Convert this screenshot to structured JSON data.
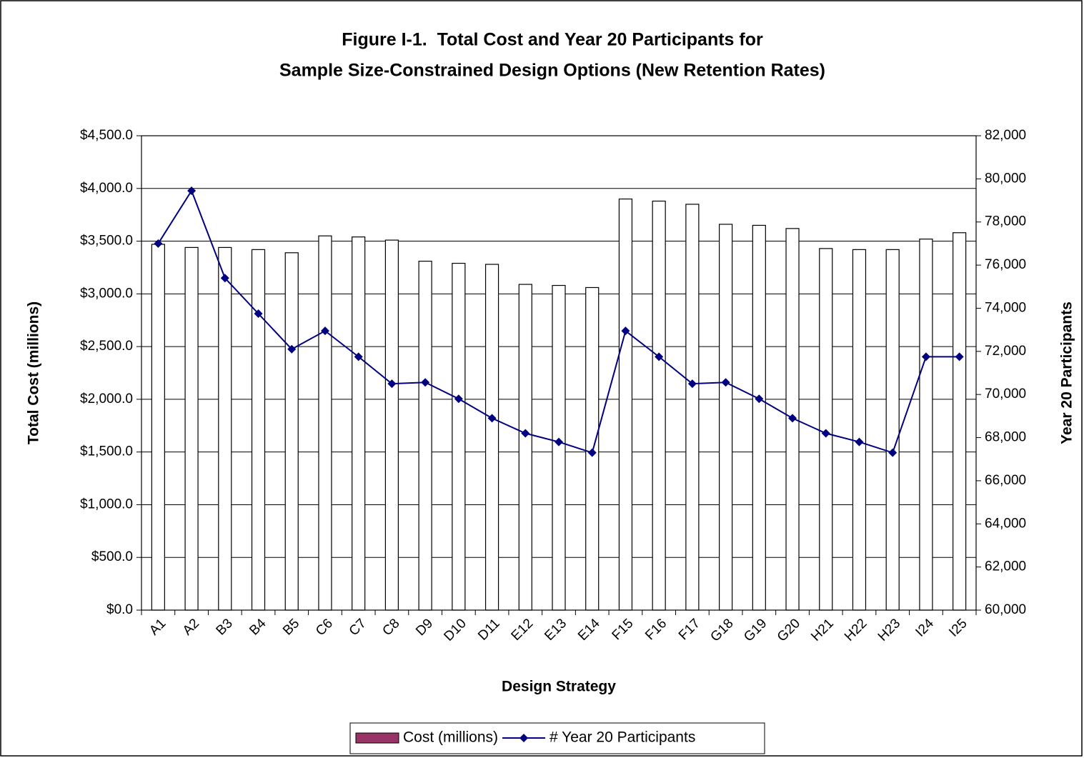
{
  "chart_data": {
    "type": "bar",
    "title": [
      "Figure I-1.  Total Cost and Year 20 Participants for",
      "Sample Size-Constrained Design Options (New Retention Rates)"
    ],
    "x_label": "Design Strategy",
    "y_label": "Total Cost (millions)",
    "y2_label": "Year 20 Participants",
    "categories": [
      "A1",
      "A2",
      "B3",
      "B4",
      "B5",
      "C6",
      "C7",
      "C8",
      "D9",
      "D10",
      "D11",
      "E12",
      "E13",
      "E14",
      "F15",
      "F16",
      "F17",
      "G18",
      "G19",
      "G20",
      "H21",
      "H22",
      "H23",
      "I24",
      "I25"
    ],
    "series": [
      {
        "name": "Cost (millions)",
        "type": "bar",
        "color": "#993366",
        "fill": "#ffffff",
        "values": [
          3470,
          3440,
          3440,
          3420,
          3390,
          3550,
          3540,
          3510,
          3310,
          3290,
          3280,
          3090,
          3080,
          3060,
          3900,
          3880,
          3850,
          3660,
          3650,
          3620,
          3430,
          3420,
          3420,
          3520,
          3580
        ]
      },
      {
        "name": "# Year 20 Participants",
        "type": "line",
        "axis": "y2",
        "color": "#000080",
        "values": [
          77000,
          79450,
          75400,
          73750,
          72100,
          72950,
          71750,
          70500,
          70560,
          69800,
          68900,
          68200,
          67800,
          67300,
          72950,
          71750,
          70500,
          70560,
          69800,
          68900,
          68200,
          67800,
          67300,
          71750,
          71750
        ]
      }
    ],
    "ylim": [
      0,
      4500
    ],
    "yticks": [
      {
        "value": 0,
        "label": "$0.0"
      },
      {
        "value": 500,
        "label": "$500.0"
      },
      {
        "value": 1000,
        "label": "$1,000.0"
      },
      {
        "value": 1500,
        "label": "$1,500.0"
      },
      {
        "value": 2000,
        "label": "$2,000.0"
      },
      {
        "value": 2500,
        "label": "$2,500.0"
      },
      {
        "value": 3000,
        "label": "$3,000.0"
      },
      {
        "value": 3500,
        "label": "$3,500.0"
      },
      {
        "value": 4000,
        "label": "$4,000.0"
      },
      {
        "value": 4500,
        "label": "$4,500.0"
      }
    ],
    "y2lim": [
      60000,
      82000
    ],
    "y2ticks": [
      {
        "value": 60000,
        "label": "60,000"
      },
      {
        "value": 62000,
        "label": "62,000"
      },
      {
        "value": 64000,
        "label": "64,000"
      },
      {
        "value": 66000,
        "label": "66,000"
      },
      {
        "value": 68000,
        "label": "68,000"
      },
      {
        "value": 70000,
        "label": "70,000"
      },
      {
        "value": 72000,
        "label": "72,000"
      },
      {
        "value": 74000,
        "label": "74,000"
      },
      {
        "value": 76000,
        "label": "76,000"
      },
      {
        "value": 78000,
        "label": "78,000"
      },
      {
        "value": 80000,
        "label": "80,000"
      },
      {
        "value": 82000,
        "label": "82,000"
      }
    ],
    "grid": true,
    "legend": "bottom"
  }
}
